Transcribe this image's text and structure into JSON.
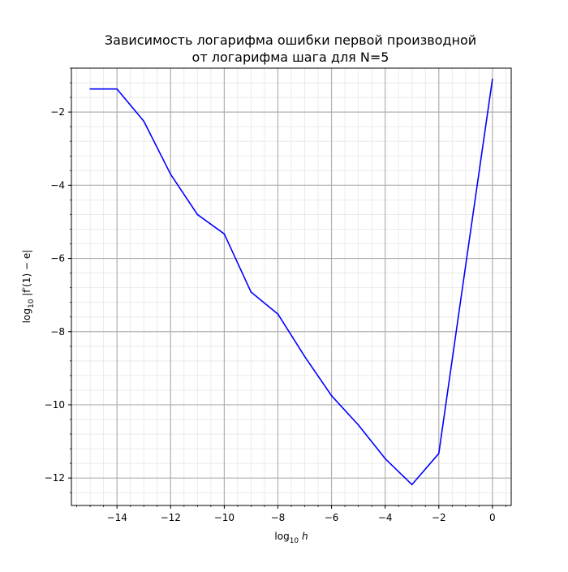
{
  "chart_data": {
    "type": "line",
    "title_lines": [
      "Зависимость логарифма ошибки первой производной",
      "от логарифма шага для N=5"
    ],
    "xlabel": {
      "prefix": "log",
      "sub": "10",
      "var": "h"
    },
    "ylabel": {
      "prefix": "log",
      "sub": "10",
      "body": "|f′(1) − e|"
    },
    "xlim": [
      -15.7,
      0.7
    ],
    "ylim": [
      -12.75,
      -0.8
    ],
    "xticks": [
      -14,
      -12,
      -10,
      -8,
      -6,
      -4,
      -2,
      0
    ],
    "yticks": [
      -2,
      -4,
      -6,
      -8,
      -10,
      -12
    ],
    "x_minor_step": 0.5,
    "y_minor_step": 0.4,
    "grid": {
      "major": true,
      "minor": true,
      "major_color": "#b0b0b0",
      "minor_color": "#e6e6e6"
    },
    "series": [
      {
        "color": "#0000ff",
        "x": [
          -15,
          -14,
          -13,
          -12,
          -11,
          -10,
          -9,
          -8,
          -7,
          -6,
          -5,
          -4,
          -3,
          -2,
          -1,
          0
        ],
        "y": [
          -1.37,
          -1.37,
          -2.25,
          -3.7,
          -4.8,
          -5.33,
          -6.92,
          -7.52,
          -8.68,
          -9.75,
          -10.55,
          -11.47,
          -12.18,
          -11.33,
          -6.2,
          -1.1
        ]
      }
    ]
  }
}
